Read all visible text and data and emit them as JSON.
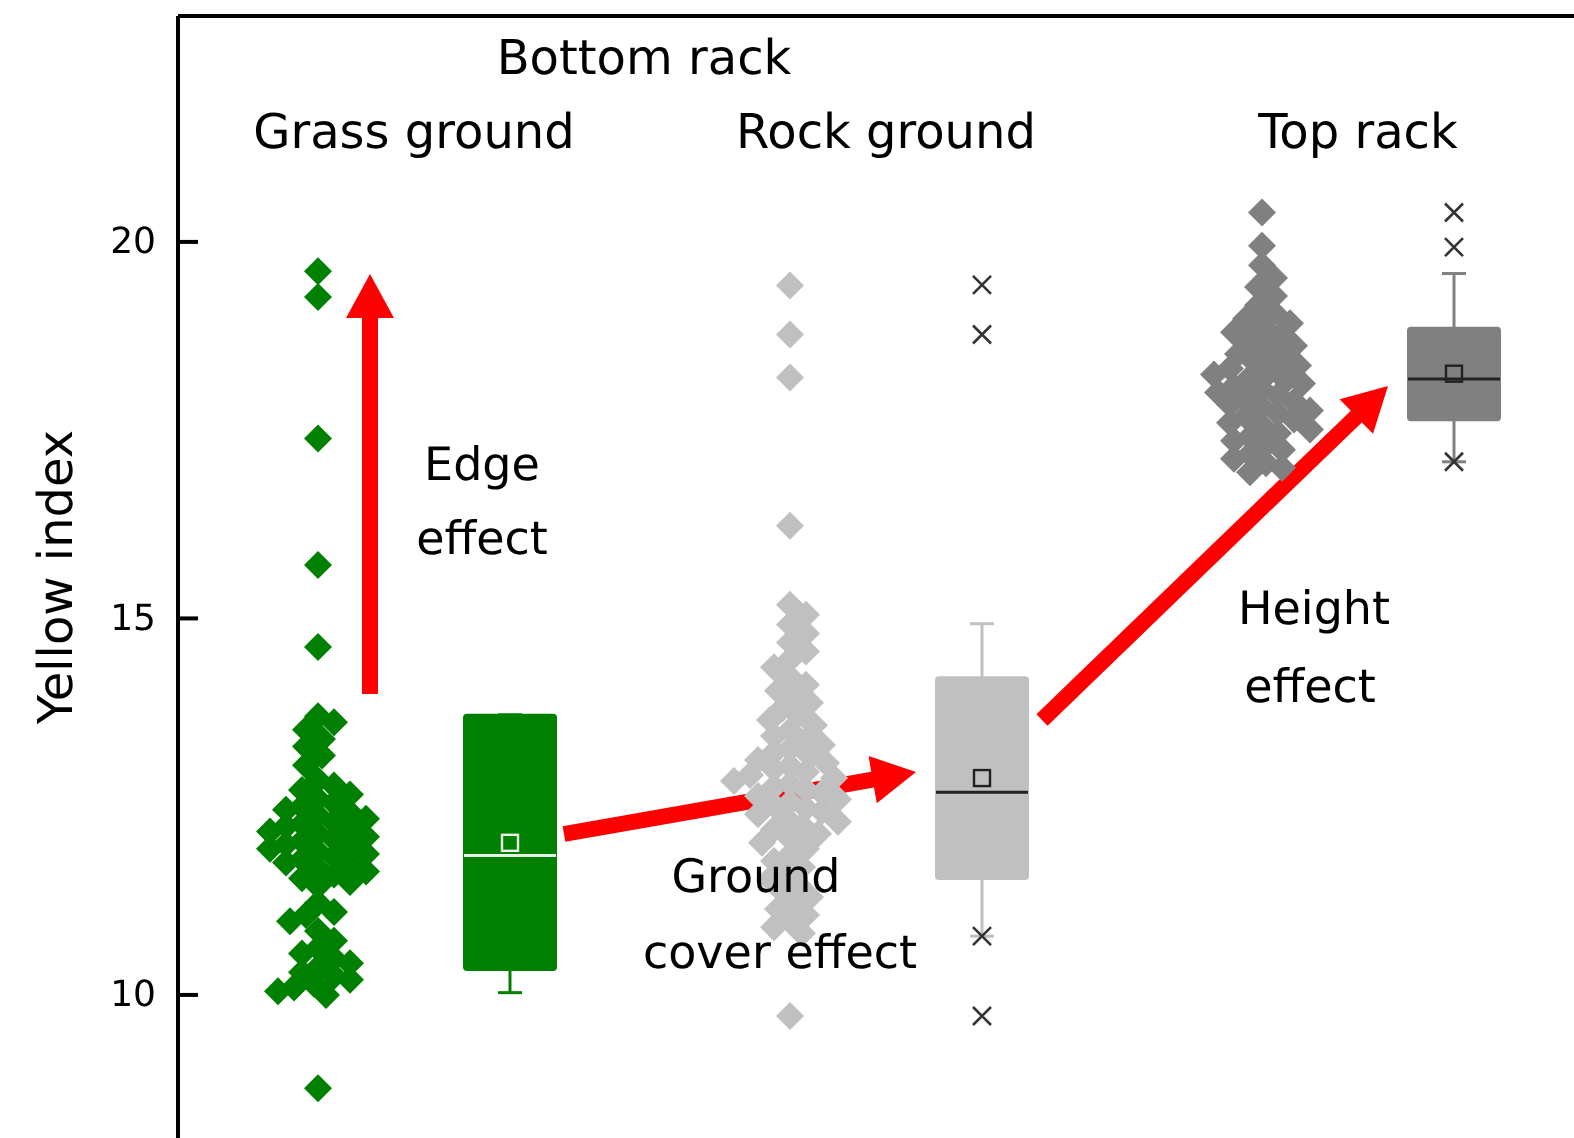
{
  "chart_data": {
    "type": "box",
    "ylabel": "Yellow index",
    "categories": [
      "Grass ground",
      "Rock ground",
      "Top rack"
    ],
    "colors": [
      "#008000",
      "#c0c0c0",
      "#808080"
    ],
    "boxes": [
      {
        "low": 10.03,
        "q1": 10.33,
        "median": 11.85,
        "q3": 13.72,
        "high": 13.72,
        "mean": 12.02
      },
      {
        "low": 10.78,
        "q1": 11.54,
        "median": 12.69,
        "q3": 14.22,
        "high": 14.93,
        "mean": 12.88,
        "outliers": [
          9.72,
          10.78,
          18.77,
          19.43
        ]
      },
      {
        "low": 17.08,
        "q1": 17.63,
        "median": 18.18,
        "q3": 18.86,
        "high": 19.58,
        "mean": 18.25,
        "outliers": [
          17.08,
          19.93,
          20.39
        ]
      }
    ],
    "series": [
      {
        "type": "scatter",
        "color": "#008000",
        "x": [
          "Grass ground",
          "Grass ground",
          "Grass ground",
          "Grass ground",
          "Grass ground",
          "Grass ground",
          "Grass ground",
          "Grass ground",
          "Grass ground",
          "Grass ground",
          "Grass ground",
          "Grass ground",
          "Grass ground",
          "Grass ground",
          "Grass ground",
          "Grass ground",
          "Grass ground",
          "Grass ground",
          "Grass ground",
          "Grass ground",
          "Grass ground",
          "Grass ground",
          "Grass ground",
          "Grass ground",
          "Grass ground",
          "Grass ground",
          "Grass ground",
          "Grass ground",
          "Grass ground",
          "Grass ground",
          "Grass ground",
          "Grass ground",
          "Grass ground",
          "Grass ground",
          "Grass ground",
          "Grass ground",
          "Grass ground",
          "Grass ground",
          "Grass ground",
          "Grass ground",
          "Grass ground",
          "Grass ground",
          "Grass ground",
          "Grass ground",
          "Grass ground",
          "Grass ground",
          "Grass ground",
          "Grass ground",
          "Grass ground",
          "Grass ground",
          "Grass ground",
          "Grass ground",
          "Grass ground",
          "Grass ground",
          "Grass ground",
          "Grass ground",
          "Grass ground",
          "Grass ground",
          "Grass ground",
          "Grass ground",
          "Grass ground",
          "Grass ground",
          "Grass ground",
          "Grass ground",
          "Grass ground",
          "Grass ground"
        ],
        "values": [
          19.61,
          19.27,
          17.39,
          15.71,
          14.62,
          13.7,
          13.62,
          13.52,
          13.4,
          13.3,
          13.18,
          13.05,
          12.85,
          12.78,
          12.72,
          12.66,
          12.6,
          12.55,
          12.5,
          12.46,
          12.42,
          12.38,
          12.34,
          12.3,
          12.27,
          12.24,
          12.2,
          12.17,
          12.14,
          12.1,
          12.07,
          12.04,
          12.0,
          11.97,
          11.94,
          11.9,
          11.87,
          11.84,
          11.8,
          11.76,
          11.72,
          11.68,
          11.64,
          11.6,
          11.55,
          11.5,
          11.45,
          11.22,
          11.1,
          11.06,
          10.98,
          10.85,
          10.72,
          10.62,
          10.55,
          10.48,
          10.42,
          10.36,
          10.3,
          10.25,
          10.2,
          10.15,
          10.1,
          10.05,
          10.0,
          8.76
        ]
      },
      {
        "type": "scatter",
        "color": "#c0c0c0",
        "x": [
          "Rock ground",
          "Rock ground",
          "Rock ground",
          "Rock ground",
          "Rock ground",
          "Rock ground",
          "Rock ground",
          "Rock ground",
          "Rock ground",
          "Rock ground",
          "Rock ground",
          "Rock ground",
          "Rock ground",
          "Rock ground",
          "Rock ground",
          "Rock ground",
          "Rock ground",
          "Rock ground",
          "Rock ground",
          "Rock ground",
          "Rock ground",
          "Rock ground",
          "Rock ground",
          "Rock ground",
          "Rock ground",
          "Rock ground",
          "Rock ground",
          "Rock ground",
          "Rock ground",
          "Rock ground",
          "Rock ground",
          "Rock ground",
          "Rock ground",
          "Rock ground",
          "Rock ground",
          "Rock ground",
          "Rock ground",
          "Rock ground",
          "Rock ground",
          "Rock ground",
          "Rock ground",
          "Rock ground",
          "Rock ground",
          "Rock ground",
          "Rock ground",
          "Rock ground",
          "Rock ground",
          "Rock ground",
          "Rock ground",
          "Rock ground",
          "Rock ground",
          "Rock ground",
          "Rock ground",
          "Rock ground",
          "Rock ground",
          "Rock ground",
          "Rock ground",
          "Rock ground",
          "Rock ground",
          "Rock ground",
          "Rock ground",
          "Rock ground",
          "Rock ground",
          "Rock ground",
          "Rock ground",
          "Rock ground",
          "Rock ground",
          "Rock ground",
          "Rock ground",
          "Rock ground"
        ],
        "values": [
          19.42,
          18.77,
          18.2,
          16.23,
          15.18,
          15.05,
          14.92,
          14.8,
          14.68,
          14.56,
          14.45,
          14.35,
          14.22,
          14.12,
          14.04,
          13.96,
          13.88,
          13.8,
          13.72,
          13.65,
          13.58,
          13.51,
          13.44,
          13.38,
          13.32,
          13.27,
          13.22,
          13.17,
          13.12,
          13.08,
          13.04,
          13.0,
          12.96,
          12.92,
          12.88,
          12.84,
          12.8,
          12.76,
          12.72,
          12.68,
          12.64,
          12.6,
          12.56,
          12.52,
          12.48,
          12.44,
          12.4,
          12.35,
          12.3,
          12.25,
          12.2,
          12.14,
          12.08,
          12.02,
          11.94,
          11.86,
          11.78,
          11.7,
          11.62,
          11.54,
          11.46,
          11.38,
          11.3,
          11.22,
          11.14,
          11.06,
          10.98,
          10.9,
          10.82,
          9.72
        ]
      },
      {
        "type": "scatter",
        "color": "#808080",
        "x": [
          "Top rack",
          "Top rack",
          "Top rack",
          "Top rack",
          "Top rack",
          "Top rack",
          "Top rack",
          "Top rack",
          "Top rack",
          "Top rack",
          "Top rack",
          "Top rack",
          "Top rack",
          "Top rack",
          "Top rack",
          "Top rack",
          "Top rack",
          "Top rack",
          "Top rack",
          "Top rack",
          "Top rack",
          "Top rack",
          "Top rack",
          "Top rack",
          "Top rack",
          "Top rack",
          "Top rack",
          "Top rack",
          "Top rack",
          "Top rack",
          "Top rack",
          "Top rack",
          "Top rack",
          "Top rack",
          "Top rack",
          "Top rack",
          "Top rack",
          "Top rack",
          "Top rack",
          "Top rack",
          "Top rack",
          "Top rack",
          "Top rack",
          "Top rack",
          "Top rack",
          "Top rack",
          "Top rack",
          "Top rack",
          "Top rack",
          "Top rack",
          "Top rack"
        ],
        "values": [
          20.39,
          19.95,
          19.69,
          19.52,
          19.4,
          19.28,
          19.16,
          19.06,
          18.98,
          18.92,
          18.86,
          18.8,
          18.74,
          18.68,
          18.62,
          18.56,
          18.51,
          18.46,
          18.41,
          18.36,
          18.32,
          18.28,
          18.24,
          18.2,
          18.16,
          18.12,
          18.08,
          18.04,
          18.0,
          17.96,
          17.92,
          17.88,
          17.84,
          17.8,
          17.76,
          17.72,
          17.68,
          17.64,
          17.6,
          17.56,
          17.51,
          17.46,
          17.41,
          17.36,
          17.3,
          17.24,
          17.18,
          17.12,
          17.06,
          17.0,
          16.94
        ]
      }
    ],
    "marker": "diamond",
    "ylim": [
      8.1,
      23
    ],
    "yticks": [
      10,
      15,
      20
    ],
    "annotations": [
      "Bottom rack",
      "Edge effect",
      "Ground cover effect",
      "Height effect"
    ]
  }
}
